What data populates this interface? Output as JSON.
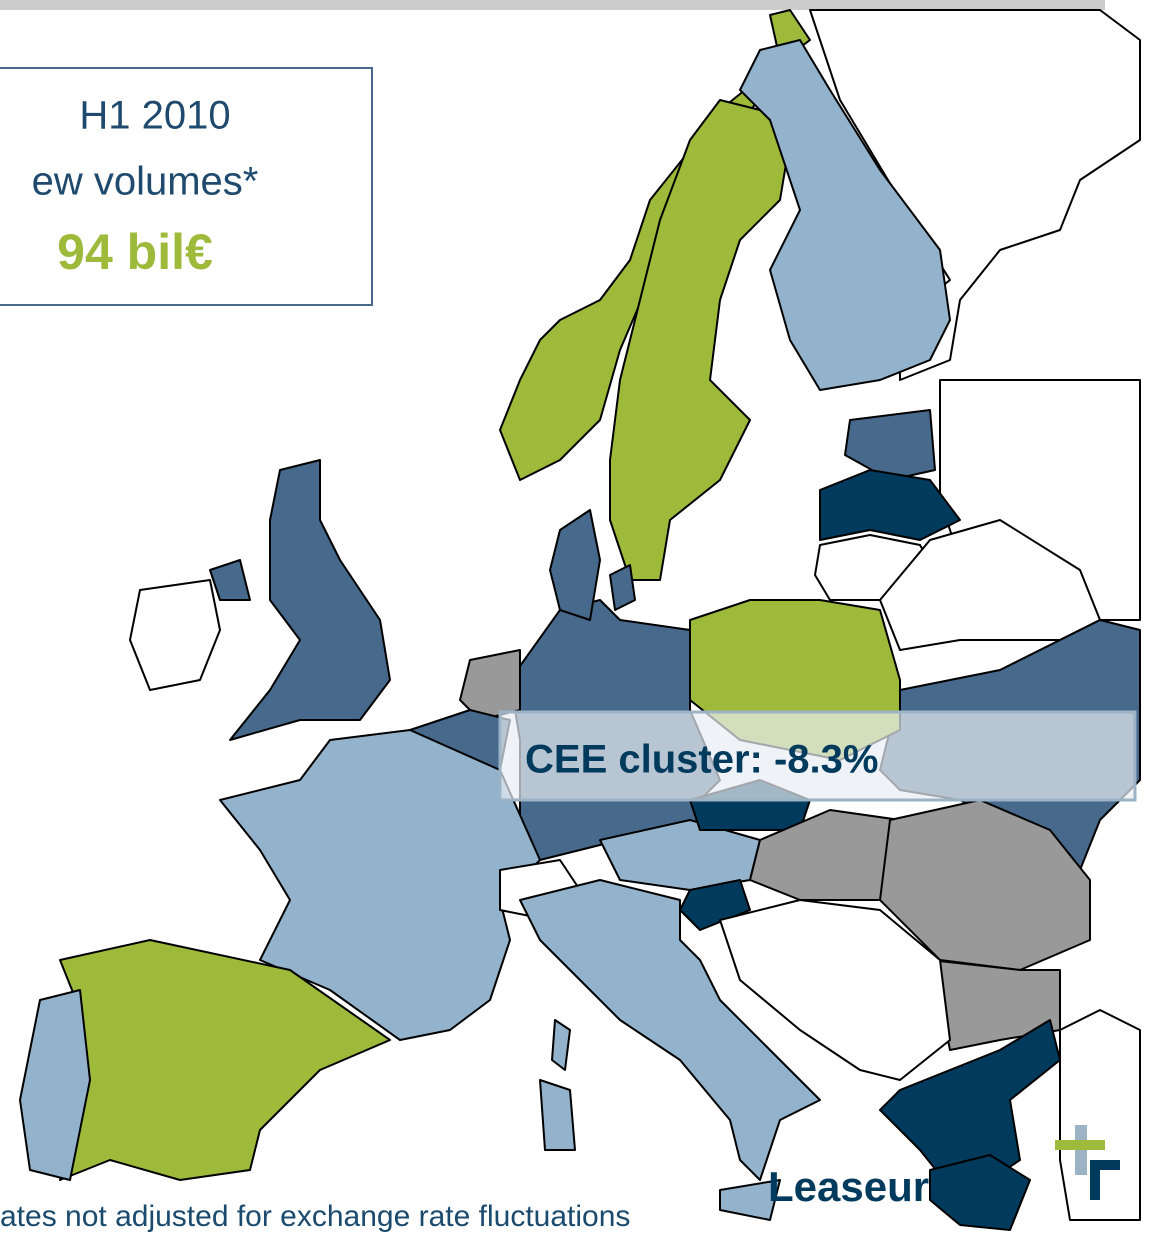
{
  "info_box": {
    "period": "H1 2010",
    "label": "ew volumes*",
    "amount": "94 bil€"
  },
  "cluster_label": "CEE cluster: -8.3%",
  "logo": "Leaseurope",
  "footnote": "ates not adjusted for exchange rate fluctuations"
}
